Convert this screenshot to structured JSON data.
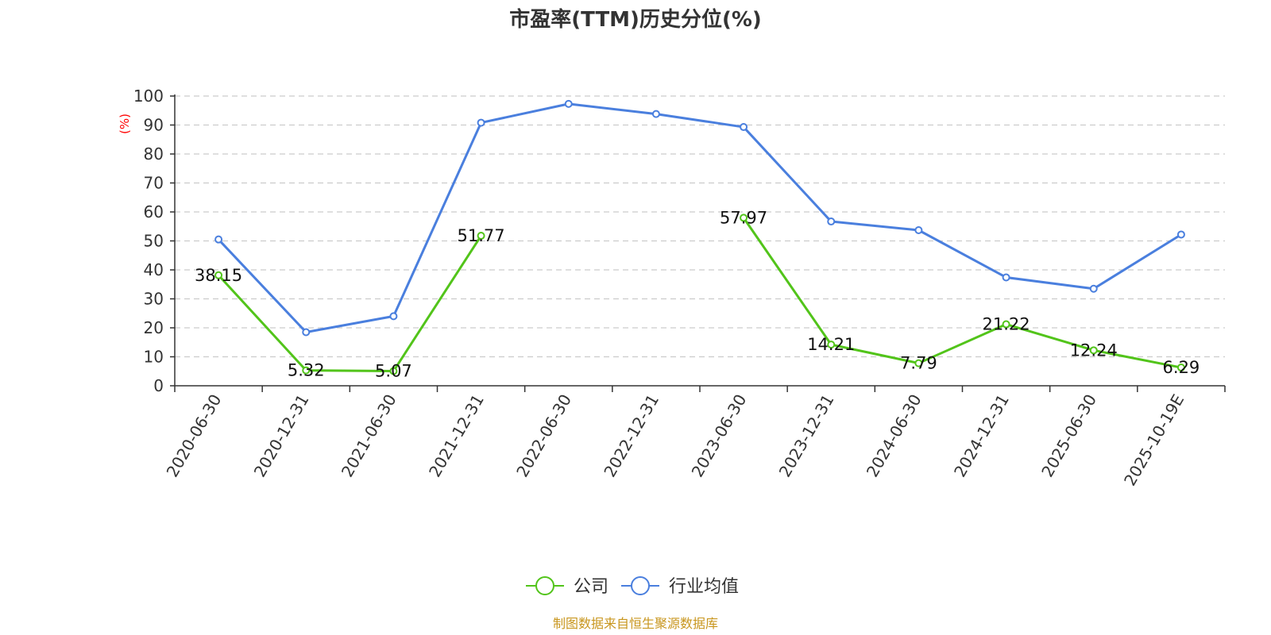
{
  "chart_data": {
    "type": "line",
    "title": "市盈率(TTM)历史分位(%)",
    "ylabel": "(%)",
    "ylim": [
      0,
      100
    ],
    "yticks": [
      0,
      10,
      20,
      30,
      40,
      50,
      60,
      70,
      80,
      90,
      100
    ],
    "grid": true,
    "legend_position": "bottom",
    "categories": [
      "2020-06-30",
      "2020-12-31",
      "2021-06-30",
      "2021-12-31",
      "2022-06-30",
      "2022-12-31",
      "2023-06-30",
      "2023-12-31",
      "2024-06-30",
      "2024-12-31",
      "2025-06-30",
      "2025-10-19E"
    ],
    "series": [
      {
        "name": "公司",
        "color": "#52c41a",
        "values": [
          38.15,
          5.32,
          5.07,
          51.77,
          null,
          null,
          57.97,
          14.21,
          7.79,
          21.22,
          12.24,
          6.29
        ],
        "labels": [
          "38.15",
          "5.32",
          "5.07",
          "51.77",
          null,
          null,
          "57.97",
          "14.21",
          "7.79",
          "21.22",
          "12.24",
          "6.29"
        ]
      },
      {
        "name": "行业均值",
        "color": "#4a7fde",
        "values": [
          50.5,
          18.5,
          24.0,
          90.8,
          97.3,
          93.8,
          89.3,
          56.7,
          53.7,
          37.4,
          33.5,
          52.2
        ]
      }
    ],
    "source": "制图数据来自恒生聚源数据库"
  }
}
